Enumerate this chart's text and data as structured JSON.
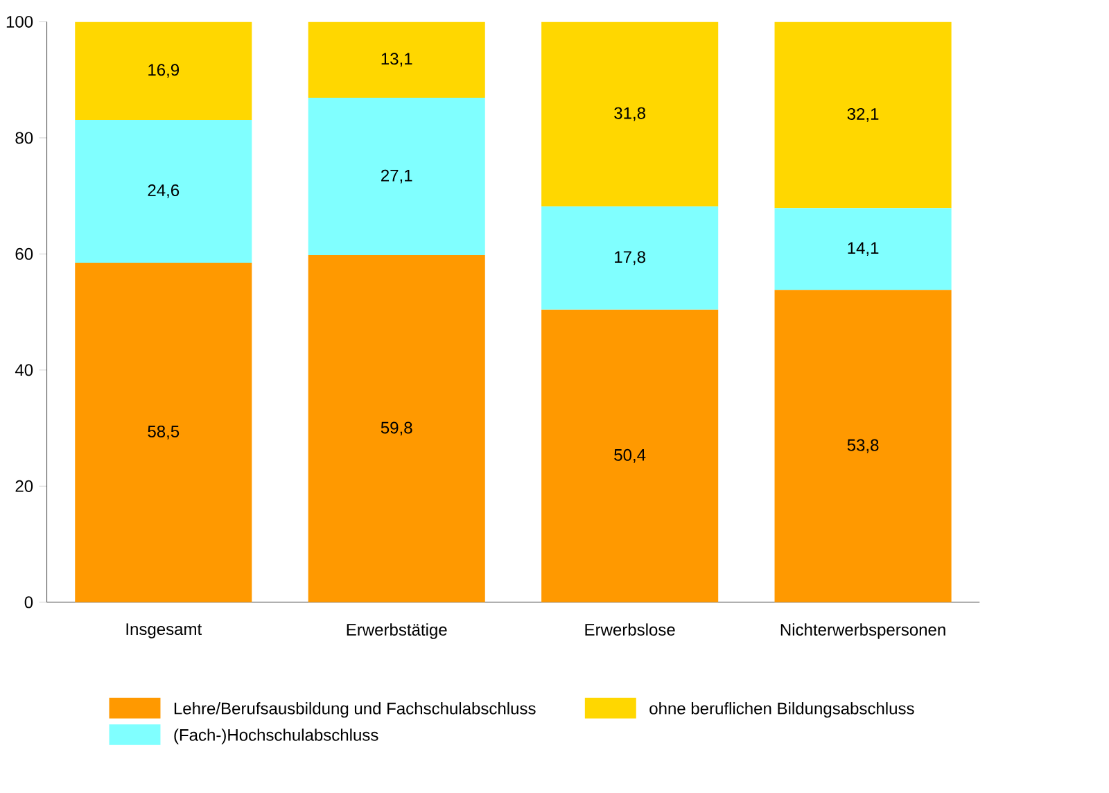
{
  "chart_data": {
    "type": "bar",
    "stacked": true,
    "categories": [
      "Insgesamt",
      "Erwerbstätige",
      "Erwerbslose",
      "Nichterwerbspersonen"
    ],
    "series": [
      {
        "name": "Lehre/Berufsausbildung und Fachschulabschluss",
        "color": "#ff9900",
        "values": [
          58.5,
          59.8,
          50.4,
          53.8
        ],
        "value_labels": [
          "58,5",
          "59,8",
          "50,4",
          "53,8"
        ]
      },
      {
        "name": "(Fach-)Hochschulabschluss",
        "color": "#80ffff",
        "values": [
          24.6,
          27.1,
          17.8,
          14.1
        ],
        "value_labels": [
          "24,6",
          "27,1",
          "17,8",
          "14,1"
        ]
      },
      {
        "name": "ohne beruflichen Bildungsabschluss",
        "color": "#ffd700",
        "values": [
          16.9,
          13.1,
          31.8,
          32.1
        ],
        "value_labels": [
          "16,9",
          "13,1",
          "31,8",
          "32,1"
        ]
      }
    ],
    "ylim": [
      0,
      100
    ],
    "yticks": [
      0,
      20,
      40,
      60,
      80,
      100
    ],
    "legend": "bottom"
  }
}
